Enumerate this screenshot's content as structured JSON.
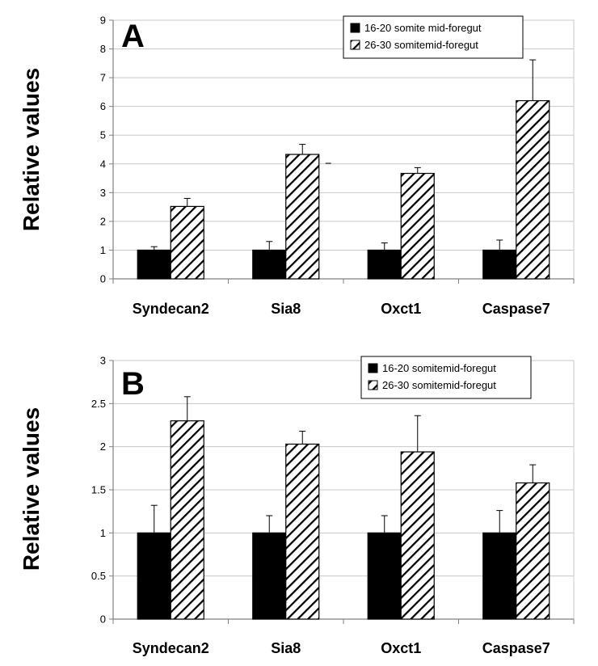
{
  "chart_data": [
    {
      "type": "bar",
      "panel_label": "A",
      "ylabel": "Relative values",
      "categories": [
        "Syndecan2",
        "Sia8",
        "Oxct1",
        "Caspase7"
      ],
      "ylim": [
        0,
        9
      ],
      "yticks": [
        "0",
        "1",
        "2",
        "3",
        "4",
        "5",
        "6",
        "7",
        "8",
        "9"
      ],
      "grid": true,
      "legend_position": "top-right",
      "series": [
        {
          "name": "16-20 somite mid-foregut",
          "values": [
            1,
            1,
            1,
            1
          ],
          "errors": [
            0.12,
            0.3,
            0.25,
            0.35
          ],
          "fill": "solid"
        },
        {
          "name": "26-30 somitemid-foregut",
          "values": [
            2.52,
            4.33,
            3.67,
            6.2
          ],
          "errors": [
            0.28,
            0.35,
            0.2,
            1.42
          ],
          "fill": "hatched"
        }
      ]
    },
    {
      "type": "bar",
      "panel_label": "B",
      "ylabel": "Relative values",
      "categories": [
        "Syndecan2",
        "Sia8",
        "Oxct1",
        "Caspase7"
      ],
      "ylim": [
        0,
        3
      ],
      "yticks": [
        "0",
        "0.5",
        "1",
        "1.5",
        "2",
        "2.5",
        "3"
      ],
      "grid": true,
      "legend_position": "top-right",
      "series": [
        {
          "name": "16-20 somitemid-foregut",
          "values": [
            1,
            1,
            1,
            1
          ],
          "errors": [
            0.32,
            0.2,
            0.2,
            0.26
          ],
          "fill": "solid"
        },
        {
          "name": "26-30 somitemid-foregut",
          "values": [
            2.3,
            2.03,
            1.94,
            1.58
          ],
          "errors": [
            0.28,
            0.15,
            0.42,
            0.21
          ],
          "fill": "hatched"
        }
      ]
    }
  ],
  "colors": {
    "solid_bar": "#000000",
    "hatch_line": "#000000",
    "grid": "#c8c8c8",
    "axis": "#808080"
  }
}
